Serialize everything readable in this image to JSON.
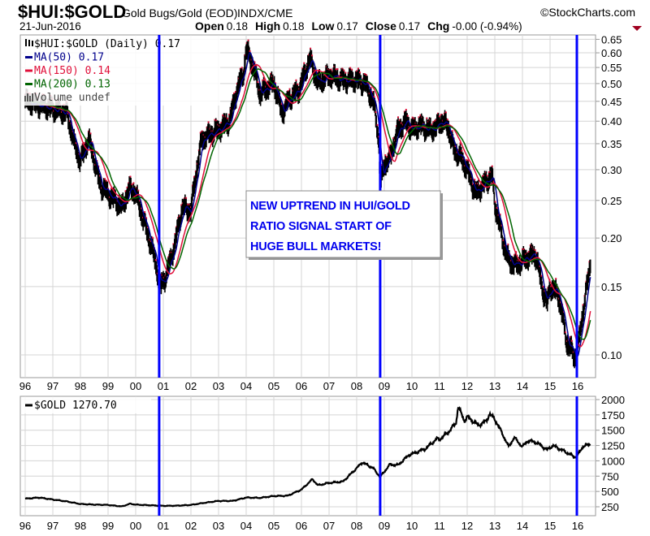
{
  "header": {
    "symbol": "$HUI:$GOLD",
    "description": "Gold Bugs/Gold (EOD)",
    "exchange": "INDX/CME",
    "date": "21-Jun-2016",
    "watermark": "©StockCharts.com",
    "quote": [
      {
        "label": "Open",
        "value": "0.18"
      },
      {
        "label": "High",
        "value": "0.18"
      },
      {
        "label": "Low",
        "value": "0.17"
      },
      {
        "label": "Close",
        "value": "0.17"
      },
      {
        "label": "Chg",
        "value": "-0.00 (-0.94%)"
      }
    ],
    "change_direction": "down"
  },
  "colors": {
    "price": "#000000",
    "ma50": "#00008b",
    "ma150": "#e0103a",
    "ma200": "#006400",
    "signal_line": "#0000ff",
    "annotation_text": "#0000ee",
    "grid": "#d4d4d4",
    "down_arrow": "#a00020"
  },
  "annotation": {
    "lines": [
      "NEW UPTREND IN HUI/GOLD",
      "RATIO SIGNAL START OF",
      "HUGE BULL MARKETS!"
    ]
  },
  "chart_data": [
    {
      "type": "line",
      "title": "$HUI:$GOLD",
      "yscale": "log",
      "ylim": [
        0.09,
        0.65
      ],
      "grid": true,
      "legend_placement": "top-left",
      "legend": [
        {
          "icon": "ohlc-bars-icon",
          "text": "$HUI:$GOLD (Daily) 0.17",
          "color": "#000000"
        },
        {
          "icon": "line-icon",
          "text": "MA(50) 0.17",
          "color": "#00008b"
        },
        {
          "icon": "line-icon",
          "text": "MA(150) 0.14",
          "color": "#e0103a"
        },
        {
          "icon": "line-icon",
          "text": "MA(200) 0.13",
          "color": "#006400"
        },
        {
          "icon": "volume-icon",
          "text": "Volume undef",
          "color": "#444444"
        }
      ],
      "yticks": [
        "0.65",
        "0.60",
        "0.55",
        "0.50",
        "0.45",
        "0.40",
        "0.35",
        "0.30",
        "0.25",
        "0.20",
        "0.15",
        "0.10"
      ],
      "xticks": [
        "96",
        "97",
        "98",
        "99",
        "00",
        "01",
        "02",
        "03",
        "04",
        "05",
        "06",
        "07",
        "08",
        "09",
        "10",
        "11",
        "12",
        "13",
        "14",
        "15",
        "16"
      ],
      "signal_lines": [
        2000.85,
        2008.85,
        2015.97
      ],
      "series": [
        {
          "name": "$HUI:$GOLD",
          "x_unit": "year",
          "points": [
            [
              1996.0,
              0.45
            ],
            [
              1996.5,
              0.44
            ],
            [
              1997.0,
              0.43
            ],
            [
              1997.5,
              0.42
            ],
            [
              1997.8,
              0.345
            ],
            [
              1998.0,
              0.315
            ],
            [
              1998.3,
              0.36
            ],
            [
              1998.7,
              0.275
            ],
            [
              1999.0,
              0.26
            ],
            [
              1999.5,
              0.24
            ],
            [
              1999.8,
              0.27
            ],
            [
              2000.0,
              0.26
            ],
            [
              2000.3,
              0.22
            ],
            [
              2000.6,
              0.187
            ],
            [
              2000.9,
              0.15
            ],
            [
              2001.1,
              0.16
            ],
            [
              2001.4,
              0.19
            ],
            [
              2001.7,
              0.24
            ],
            [
              2002.0,
              0.235
            ],
            [
              2002.4,
              0.36
            ],
            [
              2002.7,
              0.37
            ],
            [
              2003.0,
              0.38
            ],
            [
              2003.4,
              0.4
            ],
            [
              2003.7,
              0.49
            ],
            [
              2003.9,
              0.53
            ],
            [
              2004.0,
              0.61
            ],
            [
              2004.2,
              0.57
            ],
            [
              2004.5,
              0.47
            ],
            [
              2004.8,
              0.49
            ],
            [
              2005.0,
              0.5
            ],
            [
              2005.3,
              0.42
            ],
            [
              2005.6,
              0.46
            ],
            [
              2005.9,
              0.48
            ],
            [
              2006.1,
              0.525
            ],
            [
              2006.3,
              0.58
            ],
            [
              2006.6,
              0.5
            ],
            [
              2007.0,
              0.525
            ],
            [
              2007.5,
              0.51
            ],
            [
              2008.0,
              0.51
            ],
            [
              2008.3,
              0.5
            ],
            [
              2008.6,
              0.45
            ],
            [
              2008.8,
              0.36
            ],
            [
              2008.85,
              0.27
            ],
            [
              2009.0,
              0.31
            ],
            [
              2009.2,
              0.32
            ],
            [
              2009.5,
              0.38
            ],
            [
              2009.8,
              0.4
            ],
            [
              2010.0,
              0.38
            ],
            [
              2010.3,
              0.39
            ],
            [
              2010.6,
              0.38
            ],
            [
              2010.9,
              0.385
            ],
            [
              2011.0,
              0.4
            ],
            [
              2011.3,
              0.39
            ],
            [
              2011.5,
              0.34
            ],
            [
              2011.8,
              0.32
            ],
            [
              2012.0,
              0.3
            ],
            [
              2012.3,
              0.26
            ],
            [
              2012.6,
              0.275
            ],
            [
              2012.9,
              0.29
            ],
            [
              2013.0,
              0.245
            ],
            [
              2013.3,
              0.195
            ],
            [
              2013.5,
              0.175
            ],
            [
              2013.8,
              0.17
            ],
            [
              2014.0,
              0.175
            ],
            [
              2014.3,
              0.18
            ],
            [
              2014.5,
              0.18
            ],
            [
              2014.7,
              0.15
            ],
            [
              2014.9,
              0.135
            ],
            [
              2015.0,
              0.15
            ],
            [
              2015.3,
              0.143
            ],
            [
              2015.6,
              0.108
            ],
            [
              2015.9,
              0.099
            ],
            [
              2016.0,
              0.102
            ],
            [
              2016.2,
              0.13
            ],
            [
              2016.35,
              0.152
            ],
            [
              2016.47,
              0.175
            ]
          ]
        }
      ]
    },
    {
      "type": "line",
      "title": "$GOLD",
      "ylim": [
        150,
        2050
      ],
      "grid": true,
      "legend_placement": "top-left",
      "legend": [
        {
          "icon": "line-icon",
          "text": "$GOLD 1270.70",
          "color": "#000000"
        }
      ],
      "yticks": [
        "2000",
        "1750",
        "1500",
        "1250",
        "1000",
        "750",
        "500",
        "250"
      ],
      "xticks": [
        "96",
        "97",
        "98",
        "99",
        "00",
        "01",
        "02",
        "03",
        "04",
        "05",
        "06",
        "07",
        "08",
        "09",
        "10",
        "11",
        "12",
        "13",
        "14",
        "15",
        "16"
      ],
      "signal_lines": [
        2000.85,
        2008.85,
        2015.97
      ],
      "series": [
        {
          "name": "$GOLD",
          "x_unit": "year",
          "points": [
            [
              1996.0,
              381
            ],
            [
              1996.5,
              400
            ],
            [
              1997.0,
              368
            ],
            [
              1997.5,
              337
            ],
            [
              1998.0,
              295
            ],
            [
              1998.5,
              285
            ],
            [
              1999.0,
              280
            ],
            [
              1999.5,
              255
            ],
            [
              1999.8,
              300
            ],
            [
              2000.0,
              285
            ],
            [
              2000.5,
              275
            ],
            [
              2001.0,
              265
            ],
            [
              2001.5,
              268
            ],
            [
              2002.0,
              280
            ],
            [
              2002.5,
              315
            ],
            [
              2003.0,
              345
            ],
            [
              2003.5,
              345
            ],
            [
              2004.0,
              400
            ],
            [
              2004.5,
              395
            ],
            [
              2005.0,
              425
            ],
            [
              2005.5,
              430
            ],
            [
              2006.0,
              530
            ],
            [
              2006.4,
              700
            ],
            [
              2006.6,
              600
            ],
            [
              2007.0,
              640
            ],
            [
              2007.5,
              660
            ],
            [
              2008.0,
              880
            ],
            [
              2008.2,
              975
            ],
            [
              2008.6,
              880
            ],
            [
              2008.85,
              735
            ],
            [
              2009.2,
              940
            ],
            [
              2009.5,
              930
            ],
            [
              2009.9,
              1100
            ],
            [
              2010.0,
              1110
            ],
            [
              2010.5,
              1200
            ],
            [
              2010.9,
              1360
            ],
            [
              2011.0,
              1350
            ],
            [
              2011.3,
              1460
            ],
            [
              2011.6,
              1620
            ],
            [
              2011.67,
              1890
            ],
            [
              2011.9,
              1650
            ],
            [
              2012.0,
              1720
            ],
            [
              2012.4,
              1580
            ],
            [
              2012.7,
              1650
            ],
            [
              2012.8,
              1770
            ],
            [
              2013.0,
              1680
            ],
            [
              2013.3,
              1420
            ],
            [
              2013.5,
              1230
            ],
            [
              2013.7,
              1380
            ],
            [
              2014.0,
              1230
            ],
            [
              2014.2,
              1330
            ],
            [
              2014.5,
              1300
            ],
            [
              2014.9,
              1180
            ],
            [
              2015.1,
              1250
            ],
            [
              2015.5,
              1160
            ],
            [
              2015.9,
              1060
            ],
            [
              2016.0,
              1090
            ],
            [
              2016.2,
              1240
            ],
            [
              2016.47,
              1270
            ]
          ]
        }
      ]
    }
  ]
}
